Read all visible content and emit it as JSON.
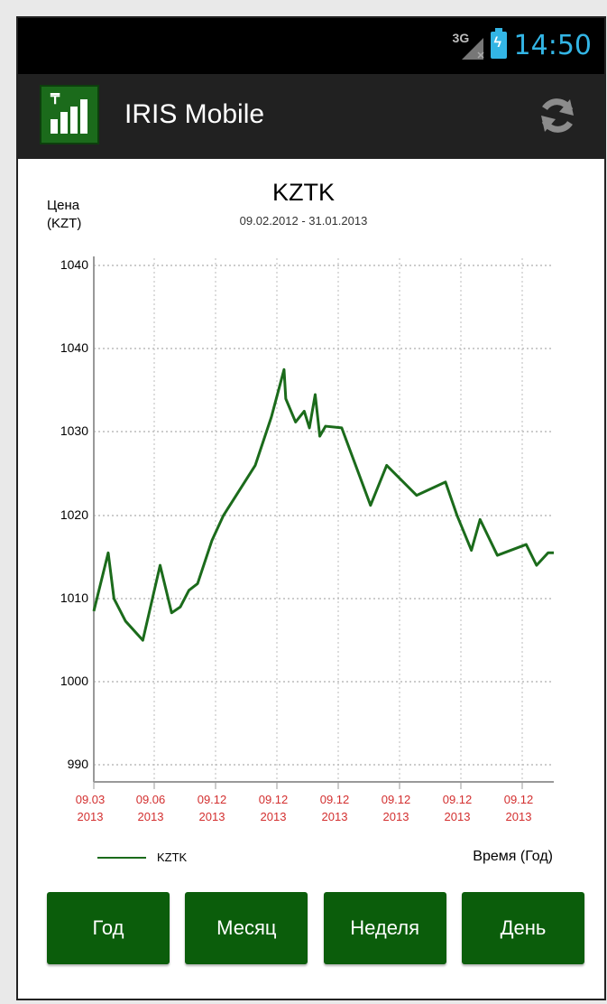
{
  "status_bar": {
    "network": "3G",
    "time": "14:50"
  },
  "action_bar": {
    "title": "IRIS Mobile",
    "logo_letter": "₸"
  },
  "chart_data": {
    "type": "line",
    "title": "KZTK",
    "subtitle": "09.02.2012 - 31.01.2013",
    "ylabel_line1": "Цена",
    "ylabel_line2": "(KZT)",
    "xlabel": "Время (Год)",
    "legend": "KZTK",
    "y_ticks": [
      "1040",
      "1040",
      "1030",
      "1020",
      "1010",
      "1000",
      "990"
    ],
    "x_ticks": [
      {
        "top": "09.03",
        "bottom": "2013"
      },
      {
        "top": "09.06",
        "bottom": "2013"
      },
      {
        "top": "09.12",
        "bottom": "2013"
      },
      {
        "top": "09.12",
        "bottom": "2013"
      },
      {
        "top": "09.12",
        "bottom": "2013"
      },
      {
        "top": "09.12",
        "bottom": "2013"
      },
      {
        "top": "09.12",
        "bottom": "2013"
      },
      {
        "top": "09.12",
        "bottom": "2013"
      }
    ],
    "grid": true,
    "ylim": [
      988,
      1050
    ],
    "series": [
      {
        "name": "KZTK",
        "color": "#1b6b1b",
        "x": [
          0,
          0.25,
          0.35,
          0.55,
          0.85,
          1.15,
          1.35,
          1.5,
          1.65,
          1.8,
          2.05,
          2.25,
          2.8,
          3.08,
          3.3,
          3.33,
          3.5,
          3.65,
          3.74,
          3.84,
          3.92,
          4.02,
          4.3,
          4.8,
          5.08,
          5.6,
          6.1,
          6.3,
          6.55,
          6.7,
          7.0,
          7.5,
          7.68,
          7.88,
          8.0
        ],
        "values": [
          1008.5,
          1015.5,
          1010,
          1007.3,
          1005,
          1014,
          1008.3,
          1009,
          1011,
          1011.8,
          1017,
          1020,
          1026,
          1031.8,
          1037.5,
          1034,
          1031.2,
          1032.5,
          1030.5,
          1034.5,
          1029.5,
          1030.7,
          1030.5,
          1021.2,
          1026,
          1022.4,
          1024,
          1020,
          1015.8,
          1019.5,
          1015.2,
          1016.5,
          1014,
          1015.5,
          1015.5
        ]
      }
    ]
  },
  "buttons": [
    "Год",
    "Месяц",
    "Неделя",
    "День"
  ],
  "colors": {
    "accent_green": "#0b5d0b",
    "line_green": "#1b6b1b",
    "tick_red": "#d32f2f",
    "status_blue": "#33b5e5"
  }
}
